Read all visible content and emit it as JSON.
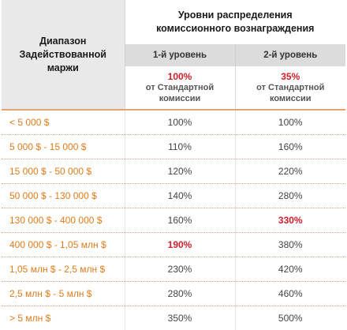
{
  "header": {
    "range_label_line1": "Диапазон",
    "range_label_line2": "Задействованной",
    "range_label_line3": "маржи",
    "group_title_line1": "Уровни распределения",
    "group_title_line2": "комиссионного вознаграждения",
    "level1": "1-й уровень",
    "level2": "2-й уровень",
    "level1_pct": "100%",
    "level2_pct": "35%",
    "pct_note_line1": "от Стандартной",
    "pct_note_line2": "комиссии"
  },
  "rows": [
    {
      "range": "< 5 000 $",
      "l1": "100%",
      "l2": "100%",
      "l1_highlight": false,
      "l2_highlight": false
    },
    {
      "range": "5 000 $ - 15 000 $",
      "l1": "110%",
      "l2": "160%",
      "l1_highlight": false,
      "l2_highlight": false
    },
    {
      "range": "15 000 $ - 50 000 $",
      "l1": "120%",
      "l2": "220%",
      "l1_highlight": false,
      "l2_highlight": false
    },
    {
      "range": "50 000 $ - 130 000 $",
      "l1": "140%",
      "l2": "280%",
      "l1_highlight": false,
      "l2_highlight": false
    },
    {
      "range": "130 000 $ - 400 000 $",
      "l1": "160%",
      "l2": "330%",
      "l1_highlight": false,
      "l2_highlight": true
    },
    {
      "range": "400 000 $ - 1,05 млн $",
      "l1": "190%",
      "l2": "380%",
      "l1_highlight": true,
      "l2_highlight": false
    },
    {
      "range": "1,05 млн $ - 2,5 млн $",
      "l1": "230%",
      "l2": "420%",
      "l1_highlight": false,
      "l2_highlight": false
    },
    {
      "range": "2,5 млн $ - 5 млн $",
      "l1": "280%",
      "l2": "460%",
      "l1_highlight": false,
      "l2_highlight": false
    },
    {
      "range": "> 5 млн $",
      "l1": "350%",
      "l2": "500%",
      "l1_highlight": false,
      "l2_highlight": false
    }
  ],
  "colors": {
    "range_text": "#e07b1a",
    "highlight": "#d0202a",
    "separator": "#e8a170"
  }
}
